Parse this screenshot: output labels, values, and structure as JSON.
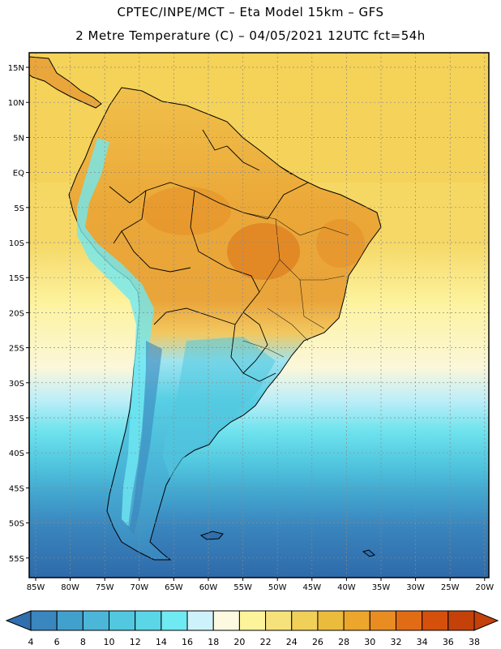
{
  "title": {
    "line1": "CPTEC/INPE/MCT –  Eta Model 15km – GFS",
    "line2": "2 Metre Temperature (C) – 04/05/2021 12UTC fct=54h"
  },
  "map": {
    "lat_labels": [
      "15N",
      "10N",
      "5N",
      "EQ",
      "5S",
      "10S",
      "15S",
      "20S",
      "25S",
      "30S",
      "35S",
      "40S",
      "45S",
      "50S",
      "55S"
    ],
    "lon_labels": [
      "85W",
      "80W",
      "75W",
      "70W",
      "65W",
      "60W",
      "55W",
      "50W",
      "45W",
      "40W",
      "35W",
      "30W",
      "25W",
      "20W"
    ]
  },
  "colorbar": {
    "labels": [
      "4",
      "6",
      "8",
      "10",
      "12",
      "14",
      "16",
      "18",
      "20",
      "22",
      "24",
      "26",
      "28",
      "30",
      "32",
      "34",
      "36",
      "38"
    ],
    "colors": [
      "#2f6fae",
      "#3a86be",
      "#42a0cc",
      "#4bb6d8",
      "#52c8e0",
      "#5ad6e6",
      "#6fe9f2",
      "#cdf2fb",
      "#fdf8e0",
      "#fdf39a",
      "#f6e27a",
      "#f0d058",
      "#ebbc3c",
      "#eda62c",
      "#e98d22",
      "#e26c14",
      "#d4500b",
      "#c4410a"
    ]
  },
  "colors": {
    "ocean_north": "#f5d25a",
    "land_hot": "#e9a33a",
    "ocean_south": "#2f6fae",
    "grid": "#8a8a8a"
  }
}
